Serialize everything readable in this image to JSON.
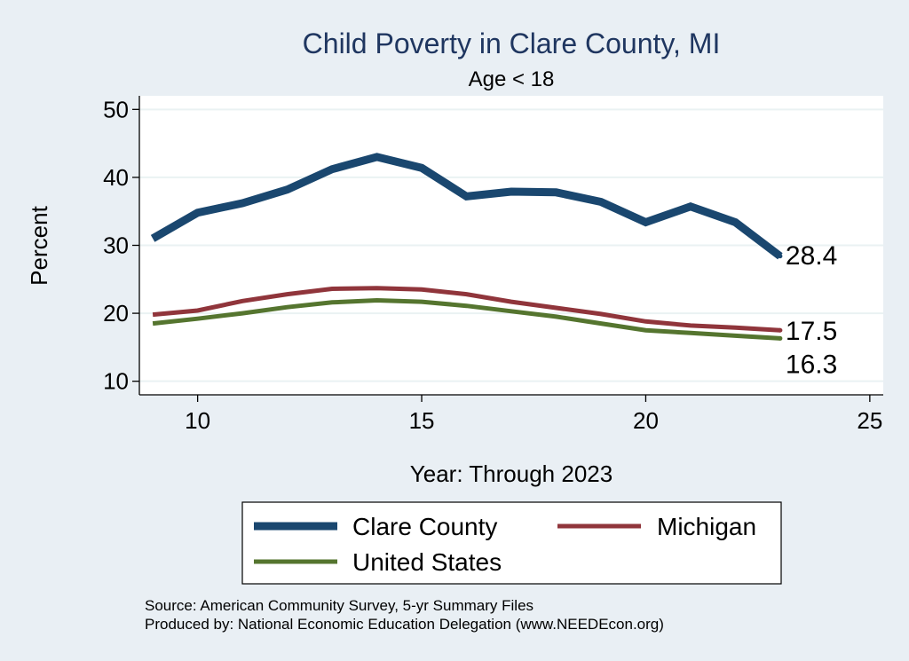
{
  "chart_data": {
    "type": "line",
    "title": "Child Poverty in Clare County, MI",
    "subtitle": "Age < 18",
    "xlabel": "Year: Through 2023",
    "ylabel": "Percent",
    "xlim": [
      8.7,
      25.3
    ],
    "ylim": [
      8,
      52
    ],
    "xticks": [
      10,
      15,
      20,
      25
    ],
    "yticks": [
      10,
      20,
      30,
      40,
      50
    ],
    "x": [
      9,
      10,
      11,
      12,
      13,
      14,
      15,
      16,
      17,
      18,
      19,
      20,
      21,
      22,
      23
    ],
    "series": [
      {
        "name": "Clare County",
        "color": "#1a476f",
        "values": [
          31.0,
          34.8,
          36.2,
          38.2,
          41.2,
          43.0,
          41.4,
          37.2,
          37.9,
          37.8,
          36.4,
          33.4,
          35.7,
          33.4,
          28.4
        ],
        "end_label": "28.4"
      },
      {
        "name": "Michigan",
        "color": "#90353b",
        "values": [
          19.8,
          20.4,
          21.8,
          22.8,
          23.6,
          23.7,
          23.5,
          22.8,
          21.7,
          20.8,
          19.9,
          18.8,
          18.2,
          17.9,
          17.5
        ],
        "end_label": "17.5"
      },
      {
        "name": "United States",
        "color": "#55752f",
        "values": [
          18.5,
          19.2,
          20.0,
          20.9,
          21.6,
          21.9,
          21.7,
          21.1,
          20.3,
          19.5,
          18.5,
          17.5,
          17.1,
          16.7,
          16.3
        ],
        "end_label": "16.3"
      }
    ],
    "legend": {
      "position": "bottom",
      "entries": [
        "Clare County",
        "Michigan",
        "United States"
      ]
    },
    "notes": [
      "Source: American Community Survey, 5-yr Summary Files",
      "Produced by: National Economic Education Delegation (www.NEEDEcon.org)"
    ],
    "grid": true
  }
}
